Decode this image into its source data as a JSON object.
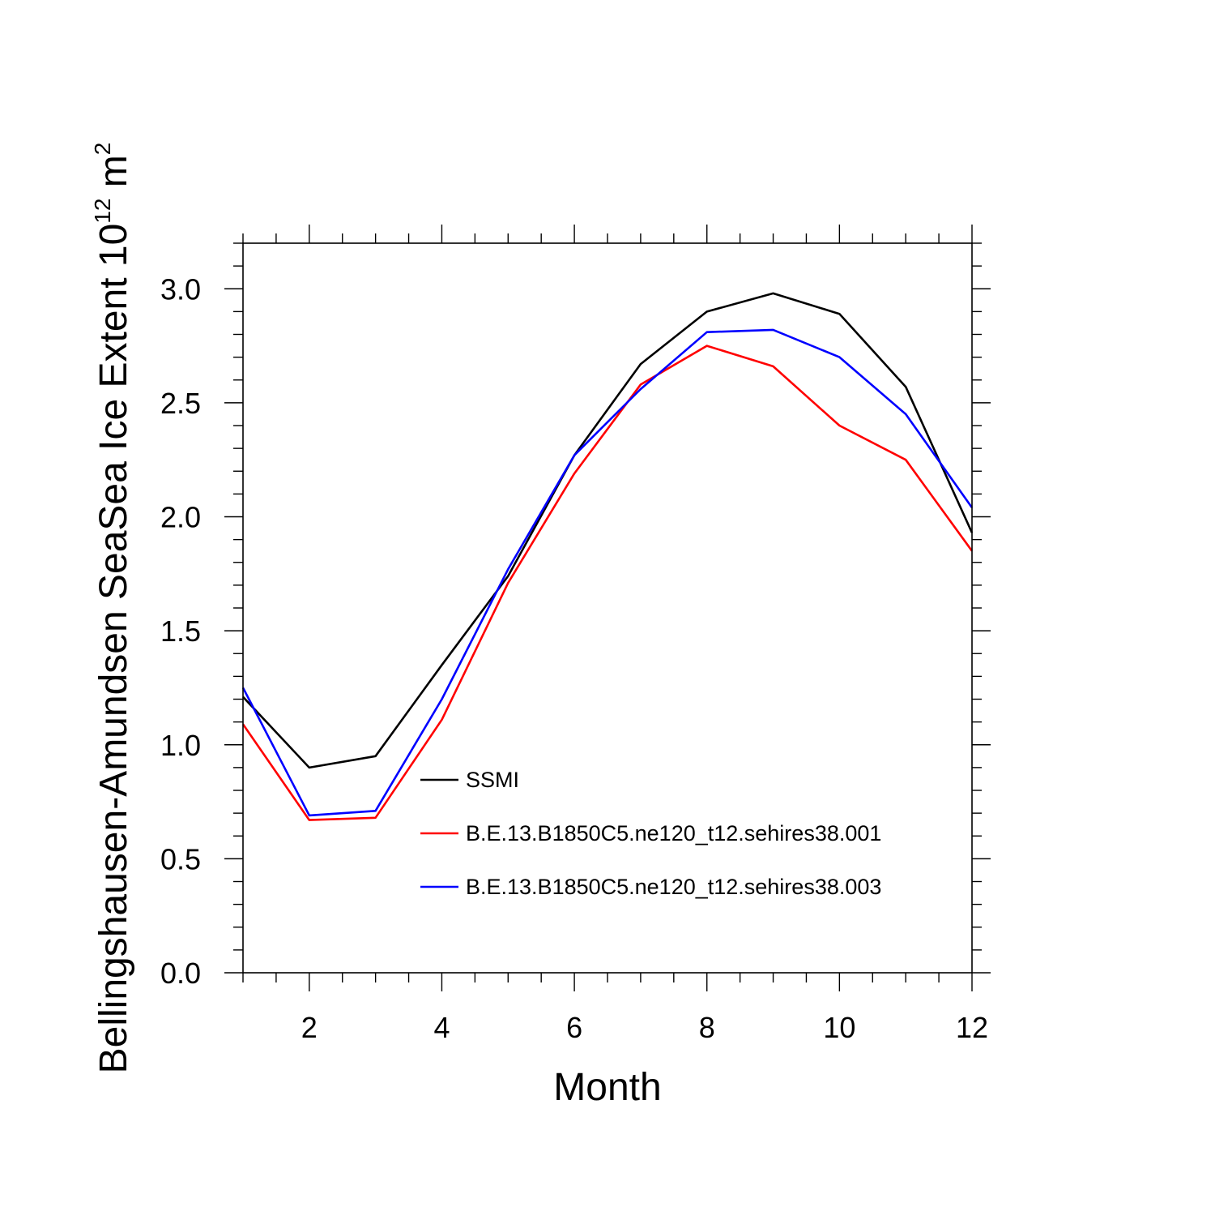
{
  "chart_data": {
    "type": "line",
    "xlabel": "Month",
    "ylabel": {
      "main": "Bellingshausen-Amundsen SeaSea Ice Extent 10",
      "exponent": "12",
      "unit_base": " m",
      "unit_exponent": "2"
    },
    "xlim": [
      1,
      12
    ],
    "ylim": [
      0,
      3.2
    ],
    "x_ticks": [
      2,
      4,
      6,
      8,
      10,
      12
    ],
    "x_tick_labels": [
      "2",
      "4",
      "6",
      "8",
      "10",
      "12"
    ],
    "y_ticks": [
      0,
      0.5,
      1,
      1.5,
      2,
      2.5,
      3
    ],
    "y_tick_labels": [
      "0.0",
      "0.5",
      "1.0",
      "1.5",
      "2.0",
      "2.5",
      "3.0"
    ],
    "grid": false,
    "legend_position": "lower-center",
    "x": [
      1,
      2,
      3,
      4,
      5,
      6,
      7,
      8,
      9,
      10,
      11,
      12
    ],
    "series": [
      {
        "name": "SSMI",
        "color": "#000000",
        "values": [
          1.21,
          0.9,
          0.95,
          1.35,
          1.74,
          2.27,
          2.67,
          2.9,
          2.98,
          2.89,
          2.57,
          1.93
        ]
      },
      {
        "name": "B.E.13.B1850C5.ne120_t12.sehires38.001",
        "color": "#ff0000",
        "values": [
          1.09,
          0.67,
          0.68,
          1.11,
          1.71,
          2.19,
          2.58,
          2.75,
          2.66,
          2.4,
          2.25,
          1.85
        ]
      },
      {
        "name": "B.E.13.B1850C5.ne120_t12.sehires38.003",
        "color": "#0000ff",
        "values": [
          1.25,
          0.69,
          0.71,
          1.2,
          1.77,
          2.27,
          2.56,
          2.81,
          2.82,
          2.7,
          2.45,
          2.04
        ]
      }
    ]
  }
}
